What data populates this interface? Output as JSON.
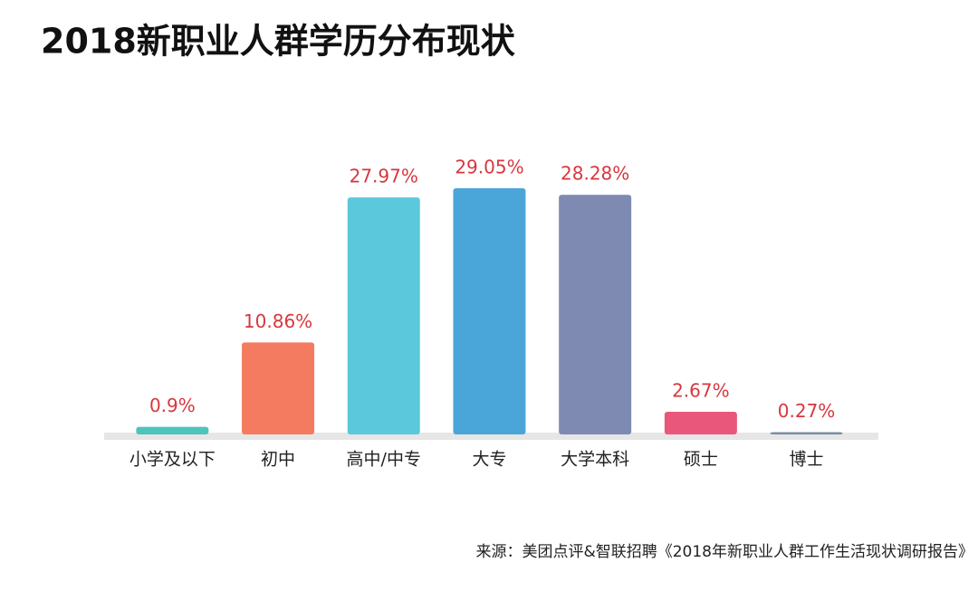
{
  "chart_data": {
    "type": "bar",
    "title": "2018新职业人群学历分布现状",
    "source": "来源：美团点评&智联招聘《2018年新职业人群工作生活现状调研报告》",
    "categories": [
      "小学及以下",
      "初中",
      "高中/中专",
      "大专",
      "大学本科",
      "硕士",
      "博士"
    ],
    "values": [
      0.9,
      10.86,
      27.97,
      29.05,
      28.28,
      2.67,
      0.27
    ],
    "value_labels": [
      "0.9%",
      "10.86%",
      "27.97%",
      "29.05%",
      "28.28%",
      "2.67%",
      "0.27%"
    ],
    "colors": [
      "#4dc4bc",
      "#f47b60",
      "#5bc8dc",
      "#4aa6d8",
      "#7f8ab2",
      "#e9577a",
      "#7a8ea3"
    ]
  }
}
